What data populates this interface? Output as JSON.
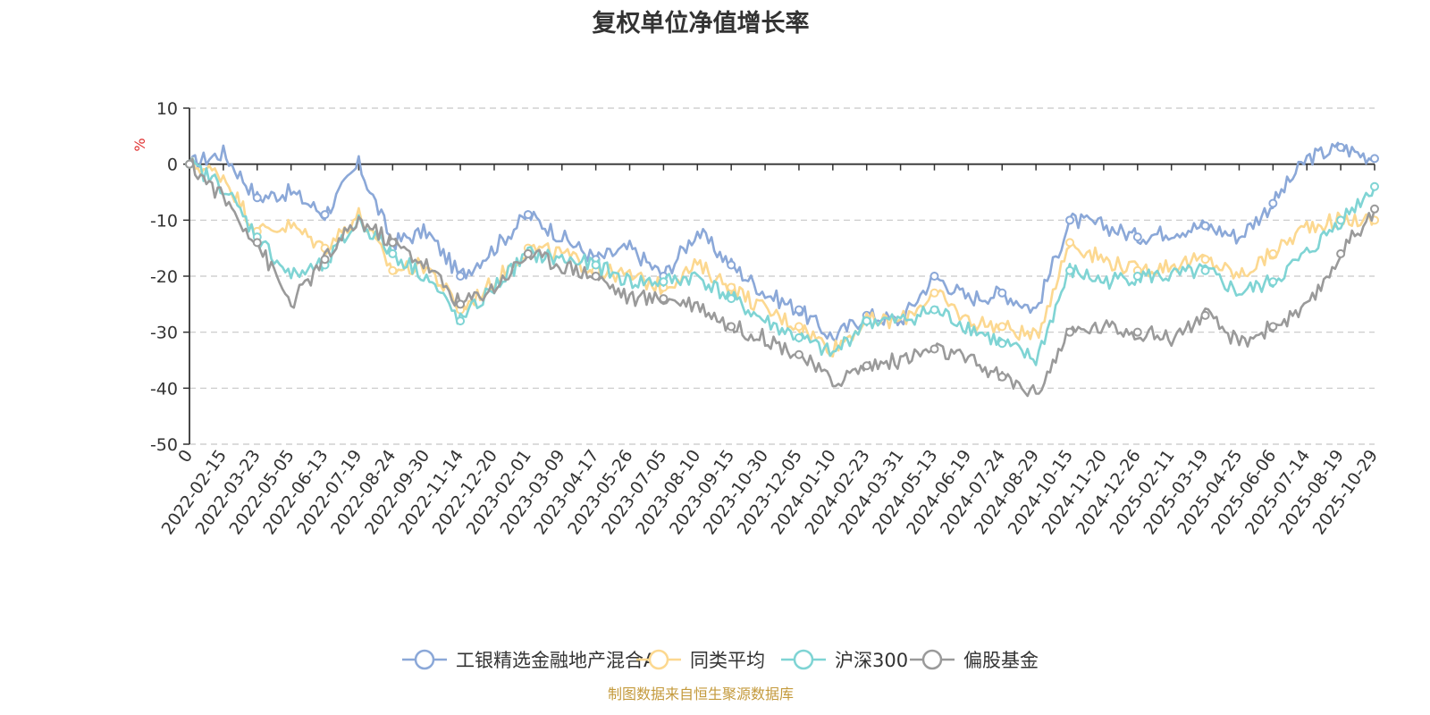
{
  "chart_data": {
    "type": "line",
    "title": "复权单位净值增长率",
    "ylabel": "%",
    "xlabel": "",
    "ylim": [
      -50,
      10
    ],
    "y_ticks": [
      10,
      0,
      -10,
      -20,
      -30,
      -40,
      -50
    ],
    "grid": "horizontal dashed",
    "legend_position": "bottom-center",
    "categories": [
      "0",
      "2022-02-15",
      "2022-03-23",
      "2022-05-05",
      "2022-06-13",
      "2022-07-19",
      "2022-08-24",
      "2022-09-30",
      "2022-11-14",
      "2022-12-20",
      "2023-02-01",
      "2023-03-09",
      "2023-04-17",
      "2023-05-26",
      "2023-07-05",
      "2023-08-10",
      "2023-09-15",
      "2023-10-30",
      "2023-12-05",
      "2024-01-10",
      "2024-02-23",
      "2024-03-31",
      "2024-05-13",
      "2024-06-19",
      "2024-07-24",
      "2024-08-29",
      "2024-10-15",
      "2024-11-20",
      "2024-12-26",
      "2025-02-11",
      "2025-03-19",
      "2025-04-25",
      "2025-06-06",
      "2025-07-14",
      "2025-08-19",
      "2025-10-29"
    ],
    "series": [
      {
        "name": "工银精选金融地产混合A",
        "color": "#8ba8d8",
        "values": [
          0,
          2,
          -6,
          -5,
          -9,
          0,
          -14,
          -12,
          -20,
          -15,
          -9,
          -13,
          -17,
          -15,
          -20,
          -12,
          -18,
          -23,
          -26,
          -31,
          -27,
          -28,
          -20,
          -24,
          -23,
          -26,
          -10,
          -11,
          -13,
          -12,
          -11,
          -13,
          -7,
          1,
          3,
          1
        ]
      },
      {
        "name": "同类平均",
        "color": "#fcd890",
        "values": [
          0,
          -2,
          -12,
          -11,
          -15,
          -9,
          -19,
          -18,
          -26,
          -21,
          -15,
          -16,
          -19,
          -20,
          -22,
          -18,
          -22,
          -26,
          -29,
          -33,
          -28,
          -28,
          -23,
          -28,
          -29,
          -31,
          -14,
          -17,
          -19,
          -18,
          -17,
          -20,
          -16,
          -11,
          -10,
          -10
        ]
      },
      {
        "name": "沪深300",
        "color": "#7fd4d4",
        "values": [
          0,
          -4,
          -13,
          -20,
          -18,
          -10,
          -16,
          -20,
          -28,
          -22,
          -16,
          -17,
          -18,
          -21,
          -21,
          -20,
          -24,
          -28,
          -31,
          -34,
          -28,
          -28,
          -26,
          -29,
          -32,
          -35,
          -19,
          -21,
          -20,
          -20,
          -19,
          -23,
          -21,
          -16,
          -10,
          -4
        ]
      },
      {
        "name": "偏股基金",
        "color": "#9a9a9a",
        "values": [
          0,
          -6,
          -14,
          -25,
          -17,
          -10,
          -14,
          -18,
          -25,
          -22,
          -16,
          -18,
          -20,
          -24,
          -24,
          -25,
          -29,
          -31,
          -34,
          -39,
          -36,
          -35,
          -33,
          -35,
          -38,
          -41,
          -30,
          -29,
          -30,
          -31,
          -27,
          -32,
          -29,
          -26,
          -16,
          -8
        ]
      }
    ]
  },
  "source_note": "制图数据来自恒生聚源数据库"
}
